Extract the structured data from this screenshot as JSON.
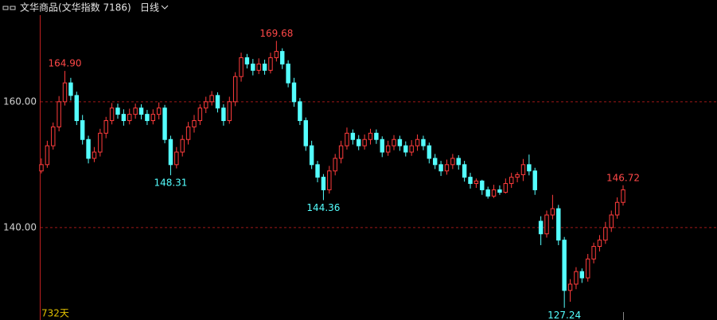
{
  "header": {
    "title": "文华商品(文华指数 7186)",
    "period": "日线"
  },
  "chart_data": {
    "type": "candlestick",
    "span_label": "732天",
    "ylim": [
      125.3,
      173.9
    ],
    "yticks": [
      {
        "value": 140,
        "label": "140.00"
      },
      {
        "value": 160,
        "label": "160.00"
      }
    ],
    "grid": true,
    "up_color": "#ff3c3c",
    "down_color": "#54ffff",
    "ohlc": [
      [
        149,
        151,
        148.6,
        150
      ],
      [
        150,
        153.8,
        149.5,
        153
      ],
      [
        153,
        156.7,
        152.4,
        156
      ],
      [
        156,
        160.9,
        155.3,
        160
      ],
      [
        160,
        164.9,
        159.4,
        163
      ],
      [
        163,
        163.8,
        160.2,
        161
      ],
      [
        161,
        161.6,
        156.3,
        157
      ],
      [
        157,
        157.9,
        153.2,
        154
      ],
      [
        154,
        154.6,
        150.2,
        151
      ],
      [
        151,
        152.8,
        150.4,
        152
      ],
      [
        152,
        155.7,
        151.3,
        155
      ],
      [
        155,
        157.6,
        154.2,
        157
      ],
      [
        157,
        159.8,
        156.4,
        159
      ],
      [
        159,
        159.7,
        157.3,
        158
      ],
      [
        158,
        158.8,
        156.2,
        157
      ],
      [
        157,
        158.9,
        156.4,
        158
      ],
      [
        158,
        159.7,
        157.3,
        159
      ],
      [
        159,
        159.6,
        157.2,
        158
      ],
      [
        158,
        158.7,
        156.3,
        157
      ],
      [
        157,
        158.8,
        156.4,
        158
      ],
      [
        158,
        159.9,
        157.2,
        159
      ],
      [
        159,
        159.5,
        153.4,
        154
      ],
      [
        154,
        154.6,
        148.31,
        150
      ],
      [
        150,
        152.8,
        149.4,
        152
      ],
      [
        152,
        154.7,
        151.3,
        154
      ],
      [
        154,
        156.8,
        153.2,
        156
      ],
      [
        156,
        157.9,
        155.1,
        157
      ],
      [
        157,
        159.6,
        156.3,
        159
      ],
      [
        159,
        160.8,
        158.2,
        160
      ],
      [
        160,
        161.7,
        159.4,
        161
      ],
      [
        161,
        161.5,
        158.3,
        159
      ],
      [
        159,
        159.6,
        156.2,
        157
      ],
      [
        157,
        160.8,
        156.5,
        160
      ],
      [
        160,
        164.7,
        159.3,
        164
      ],
      [
        164,
        167.8,
        163.2,
        167
      ],
      [
        167,
        167.6,
        165.3,
        166
      ],
      [
        166,
        166.8,
        164.2,
        165
      ],
      [
        165,
        166.9,
        164.4,
        166
      ],
      [
        166,
        166.7,
        164.3,
        165
      ],
      [
        165,
        167.8,
        164.5,
        167
      ],
      [
        167,
        169.68,
        166.4,
        168
      ],
      [
        168,
        168.5,
        165.2,
        166
      ],
      [
        166,
        166.6,
        162.3,
        163
      ],
      [
        163,
        163.8,
        159.2,
        160
      ],
      [
        160,
        160.6,
        156.3,
        157
      ],
      [
        157,
        157.5,
        152.2,
        153
      ],
      [
        153,
        153.8,
        149.3,
        150
      ],
      [
        150,
        150.6,
        147.2,
        148
      ],
      [
        148,
        148.5,
        144.36,
        146
      ],
      [
        146,
        149.8,
        145.4,
        149
      ],
      [
        149,
        151.7,
        148.3,
        151
      ],
      [
        151,
        153.8,
        150.2,
        153
      ],
      [
        153,
        155.9,
        152.4,
        155
      ],
      [
        155,
        155.6,
        153.2,
        154
      ],
      [
        154,
        154.7,
        152.3,
        153
      ],
      [
        153,
        154.8,
        152.4,
        154
      ],
      [
        154,
        155.7,
        153.2,
        155
      ],
      [
        155,
        155.6,
        153.3,
        154
      ],
      [
        154,
        154.5,
        151.2,
        152
      ],
      [
        152,
        153.8,
        151.4,
        153
      ],
      [
        153,
        154.7,
        152.3,
        154
      ],
      [
        154,
        154.6,
        152.2,
        153
      ],
      [
        153,
        153.7,
        151.3,
        152
      ],
      [
        152,
        153.9,
        151.4,
        153
      ],
      [
        153,
        154.8,
        152.2,
        154
      ],
      [
        154,
        154.6,
        152.3,
        153
      ],
      [
        153,
        153.5,
        150.2,
        151
      ],
      [
        151,
        151.7,
        149.3,
        150
      ],
      [
        150,
        150.6,
        148.2,
        149
      ],
      [
        149,
        150.8,
        148.4,
        150
      ],
      [
        150,
        151.7,
        149.3,
        151
      ],
      [
        151,
        151.5,
        149.2,
        150
      ],
      [
        150,
        150.6,
        147.3,
        148
      ],
      [
        148,
        148.7,
        146.2,
        147
      ],
      [
        147,
        147.8,
        146.3,
        147.4
      ],
      [
        147.4,
        147.6,
        145.2,
        146
      ],
      [
        146,
        146.5,
        144.6,
        145
      ],
      [
        145,
        146.8,
        144.7,
        146
      ],
      [
        146,
        146.7,
        145.2,
        145.6
      ],
      [
        145.6,
        147.8,
        145.4,
        147
      ],
      [
        147,
        148.7,
        146.3,
        148
      ],
      [
        148,
        148.8,
        147.2,
        148.4
      ],
      [
        148.4,
        150.9,
        147.4,
        150
      ],
      [
        150,
        151.6,
        148.3,
        149
      ],
      [
        149,
        149.5,
        145.2,
        146
      ],
      [
        141,
        141.8,
        137.2,
        139
      ],
      [
        139,
        142.7,
        138.4,
        142
      ],
      [
        142,
        145.2,
        141.3,
        143
      ],
      [
        143,
        143.6,
        137.2,
        138
      ],
      [
        138,
        138.5,
        127.24,
        130
      ],
      [
        130,
        131.8,
        128.2,
        131
      ],
      [
        131,
        133.7,
        130.2,
        133
      ],
      [
        133,
        133.5,
        131.2,
        132
      ],
      [
        132,
        135.8,
        131.4,
        135
      ],
      [
        135,
        137.6,
        134.3,
        137
      ],
      [
        137,
        138.8,
        136.2,
        138
      ],
      [
        138,
        140.9,
        137.4,
        140
      ],
      [
        140,
        142.7,
        139.3,
        142
      ],
      [
        142,
        144.8,
        141.4,
        144
      ],
      [
        144,
        146.72,
        143.5,
        146
      ]
    ],
    "annotations": [
      {
        "value": 164.9,
        "label": "164.90"
      },
      {
        "value": 148.31,
        "label": "148.31"
      },
      {
        "value": 169.68,
        "label": "169.68"
      },
      {
        "value": 144.36,
        "label": "144.36"
      },
      {
        "value": 127.24,
        "label": "127.24"
      },
      {
        "value": 146.72,
        "label": "146.72"
      }
    ]
  }
}
